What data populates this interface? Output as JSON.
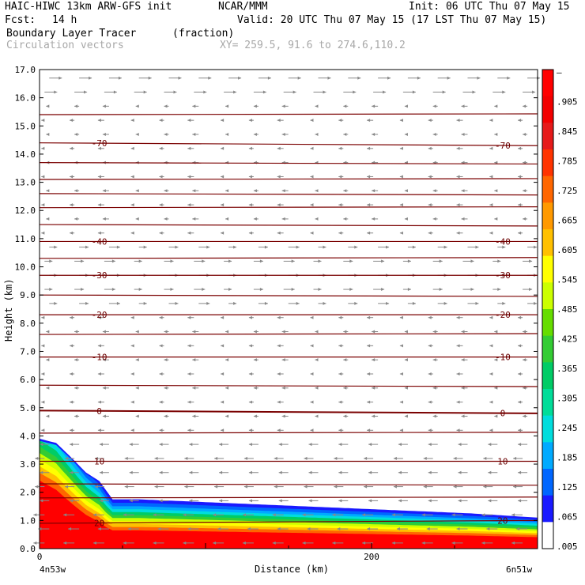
{
  "header": {
    "model": "HAIC-HIWC 13km ARW-GFS init",
    "org": "NCAR/MMM",
    "init": "Init: 06 UTC Thu 07 May 15",
    "fcst_label": "Fcst:",
    "fcst_value": "14 h",
    "valid": "Valid: 20 UTC Thu 07 May 15 (17 LST Thu 07 May 15)",
    "field": "Boundary Layer Tracer",
    "field_units": "(fraction)",
    "overlay": "Circulation vectors",
    "xy": "XY= 259.5, 91.6 to 274.6,110.2"
  },
  "chart_data": {
    "type": "heatmap",
    "ylabel": "Height (km)",
    "xlabel": "Distance (km)",
    "ylim": [
      0,
      17
    ],
    "xlim": [
      0,
      300
    ],
    "y_ticks": [
      "0.0",
      "1.0",
      "2.0",
      "3.0",
      "4.0",
      "5.0",
      "6.0",
      "7.0",
      "8.0",
      "9.0",
      "10.0",
      "11.0",
      "12.0",
      "13.0",
      "14.0",
      "15.0",
      "16.0",
      "17.0"
    ],
    "x_ticks": [
      {
        "value": 0,
        "label": "0"
      },
      {
        "value": 200,
        "label": "200"
      }
    ],
    "x_endpoint_labels": {
      "left": "4n53w",
      "right": "6n51w"
    },
    "colorbar": {
      "labels": [
        "–",
        ".905",
        ".845",
        ".785",
        ".725",
        ".665",
        ".605",
        ".545",
        ".485",
        ".425",
        ".365",
        ".305",
        ".245",
        ".185",
        ".125",
        ".065",
        ".005"
      ],
      "colors": [
        "#ff0000",
        "#f20000",
        "#e61a1a",
        "#ff3300",
        "#ff6600",
        "#ff9900",
        "#ffc000",
        "#ffff00",
        "#ccff00",
        "#66dd00",
        "#33cc33",
        "#00cc66",
        "#00dd99",
        "#00dddd",
        "#00aaff",
        "#0066ff",
        "#1a1aff",
        "#ffffff"
      ]
    },
    "tracer_top_profile": [
      {
        "x": 0,
        "top": 3.9
      },
      {
        "x": 10,
        "top": 3.75
      },
      {
        "x": 18,
        "top": 3.3
      },
      {
        "x": 28,
        "top": 2.7
      },
      {
        "x": 36,
        "top": 2.4
      },
      {
        "x": 44,
        "top": 1.75
      },
      {
        "x": 60,
        "top": 1.75
      },
      {
        "x": 100,
        "top": 1.65
      },
      {
        "x": 140,
        "top": 1.55
      },
      {
        "x": 180,
        "top": 1.45
      },
      {
        "x": 220,
        "top": 1.35
      },
      {
        "x": 260,
        "top": 1.25
      },
      {
        "x": 300,
        "top": 1.1
      }
    ],
    "isotherms": [
      {
        "label": "-70",
        "y0": 14.4,
        "y1": 14.3
      },
      {
        "label": "-40",
        "y0": 10.9,
        "y1": 10.9
      },
      {
        "label": "-30",
        "y0": 9.7,
        "y1": 9.7
      },
      {
        "label": "-20",
        "y0": 8.3,
        "y1": 8.3
      },
      {
        "label": "-10",
        "y0": 6.8,
        "y1": 6.8
      },
      {
        "label": "0",
        "y0": 4.9,
        "y1": 4.8
      },
      {
        "label": "10",
        "y0": 3.1,
        "y1": 3.1
      },
      {
        "label": "20",
        "y0": 0.9,
        "y1": 1.0
      }
    ],
    "extra_isotherm_levels": [
      15.4,
      13.7,
      13.1,
      12.6,
      12.1,
      11.5,
      10.3,
      9.0,
      7.6,
      5.8,
      4.1,
      2.3,
      1.8
    ],
    "wind_vectors": {
      "direction_upper": "east",
      "direction_lower": "west",
      "reversal_height_km": 15.8
    }
  }
}
